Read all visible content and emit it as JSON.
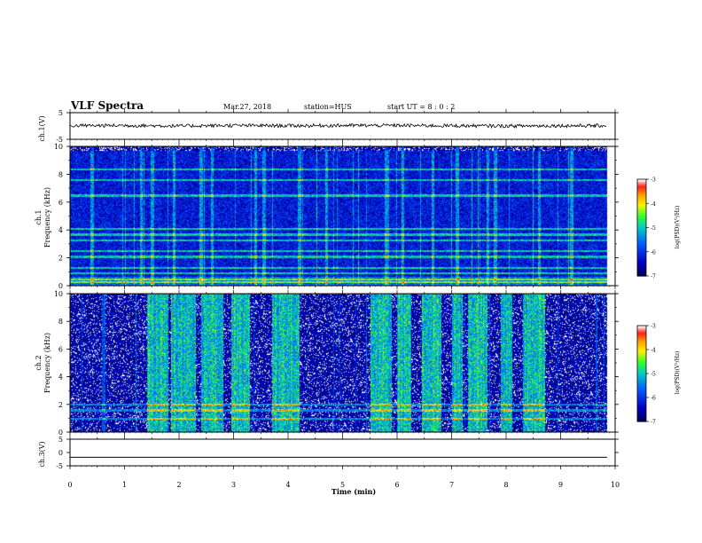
{
  "header": {
    "title": "VLF Spectra",
    "date": "Mar.27, 2018",
    "station": "station=HUS",
    "start_ut": "start  UT =   8 : 0  : 2"
  },
  "colorbar": {
    "label": "log(PSD)(V²/Hz)",
    "ticks": [
      "-3",
      "-4",
      "-5",
      "-6",
      "-7"
    ],
    "colors": [
      "#ffffff",
      "#ff2020",
      "#ffb000",
      "#fff000",
      "#30ff30",
      "#00c8c8",
      "#0064ff",
      "#0000c8",
      "#000050"
    ]
  },
  "chart_data": [
    {
      "type": "line",
      "name_on_axis": "ch.1(V)",
      "ylabel": "ch.1(V)",
      "ylim": [
        -5,
        5
      ],
      "yticks": [
        "5",
        "-5"
      ],
      "x": [
        0,
        1,
        2,
        3,
        4,
        5,
        6,
        7,
        8,
        9,
        9.85
      ],
      "values": [
        0.1,
        0.2,
        0.0,
        0.2,
        0.1,
        0.2,
        0.2,
        0.1,
        0.0,
        0.1,
        0.1
      ]
    },
    {
      "type": "heatmap",
      "ylabel_top": "ch.1",
      "ylabel": "Frequency  (kHz)",
      "ylim": [
        0,
        10
      ],
      "yticks": [
        "0",
        "2",
        "4",
        "6",
        "8",
        "10"
      ],
      "xlim": [
        0,
        10
      ],
      "zlim": [
        -7,
        -3
      ],
      "base_level": -6.2,
      "hot_bands_khz": [
        0.3,
        0.5,
        0.9,
        1.3,
        2.1,
        2.5,
        3.3,
        3.7,
        4.1,
        6.5,
        7.6,
        8.4
      ],
      "vertical_lines_min": [
        0.4,
        1.3,
        1.5,
        1.9,
        2.4,
        2.6,
        3.4,
        3.55,
        4.2,
        4.7,
        5.8,
        6.1,
        6.65,
        7.1,
        7.8,
        8.6,
        9.2
      ]
    },
    {
      "type": "heatmap",
      "ylabel_top": "ch.2",
      "ylabel": "Frequency  (kHz)",
      "ylim": [
        0,
        10
      ],
      "yticks": [
        "0",
        "2",
        "4",
        "6",
        "8",
        "10"
      ],
      "xlim": [
        0,
        10
      ],
      "zlim": [
        -7,
        -3
      ],
      "base_level": -6.6,
      "active_intervals_min": [
        [
          1.4,
          1.8
        ],
        [
          1.85,
          2.3
        ],
        [
          2.4,
          2.8
        ],
        [
          2.95,
          3.3
        ],
        [
          3.7,
          4.2
        ],
        [
          5.5,
          5.9
        ],
        [
          6.0,
          6.25
        ],
        [
          6.45,
          6.8
        ],
        [
          7.0,
          7.2
        ],
        [
          7.3,
          7.65
        ],
        [
          7.9,
          8.1
        ],
        [
          8.3,
          8.7
        ]
      ],
      "hot_bands_khz": [
        1.0,
        1.6,
        2.0
      ],
      "xticks": [
        "0",
        "1",
        "2",
        "3",
        "4",
        "5",
        "6",
        "7",
        "8",
        "9",
        "10"
      ],
      "xlabel": "Time  (min)"
    },
    {
      "type": "line",
      "ylabel": "ch.3(V)",
      "ylim": [
        -5,
        5
      ],
      "yticks": [
        "5",
        "0",
        "-5"
      ],
      "x": [
        0,
        9.85
      ],
      "values": [
        -1.8,
        -1.8
      ]
    }
  ]
}
